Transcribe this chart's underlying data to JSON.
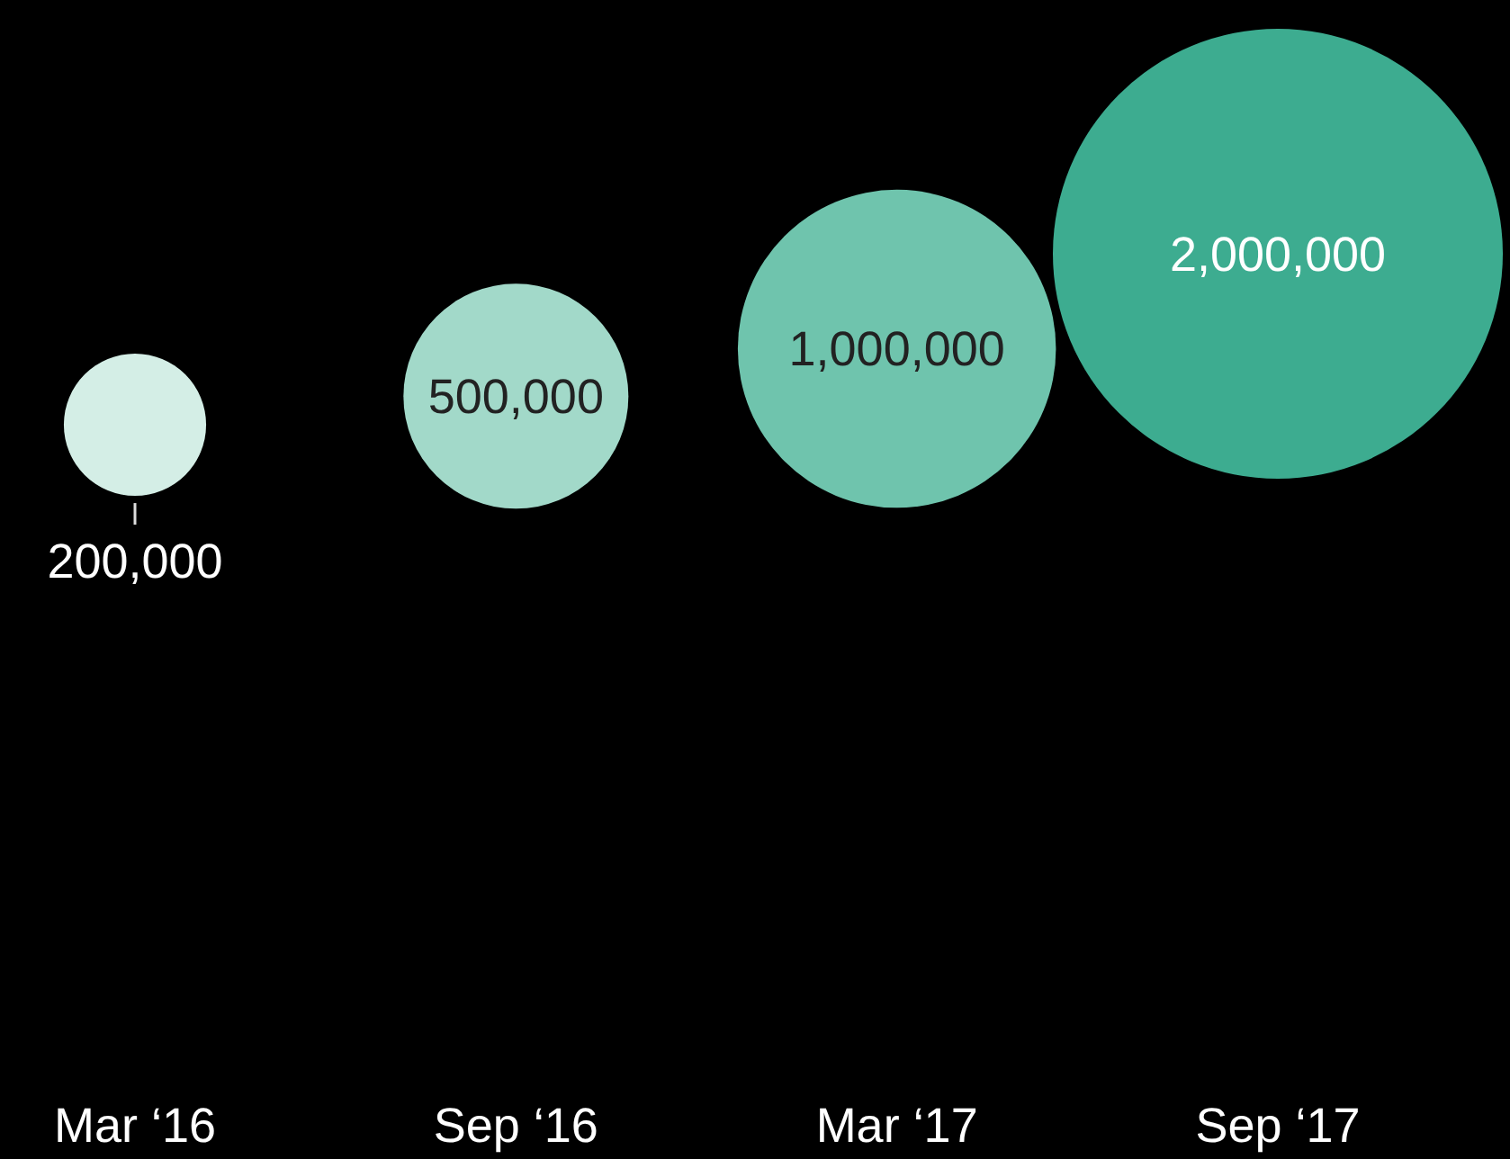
{
  "chart_data": {
    "type": "bubble",
    "categories": [
      "Mar ‘16",
      "Sep ‘16",
      "Mar ‘17",
      "Sep ‘17"
    ],
    "values": [
      200000,
      500000,
      1000000,
      2000000
    ],
    "value_labels": [
      "200,000",
      "500,000",
      "1,000,000",
      "2,000,000"
    ],
    "sizes": [
      0.1,
      0.25,
      0.5,
      1
    ],
    "colors": [
      "#d4eee6",
      "#a2d9c9",
      "#6fc4ad",
      "#3dac90"
    ],
    "data_labels": true
  }
}
